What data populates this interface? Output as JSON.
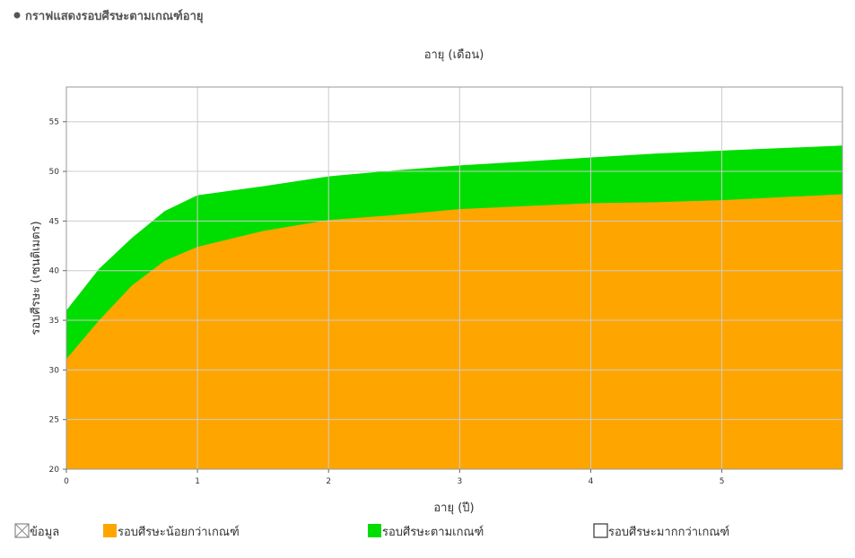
{
  "chart_data": {
    "type": "area",
    "title": "กราฟแสดงรอบศีรษะตามเกณฑ์อายุ",
    "top_axis_label": "อายุ (เดือน)",
    "x_label": "อายุ (ปี)",
    "y_label": "รอบศีรษะ (เซนติเมตร)",
    "x": [
      0,
      0.25,
      0.5,
      0.75,
      1,
      1.5,
      2,
      2.5,
      3,
      3.5,
      4,
      4.5,
      5,
      5.92
    ],
    "series": [
      {
        "name": "รอบศีรษะน้อยกว่าเกณฑ์",
        "color": "#ffa500",
        "values": [
          31.1,
          35,
          38.5,
          41,
          42.4,
          44,
          45.1,
          45.6,
          46.2,
          46.5,
          46.8,
          46.9,
          47.1,
          47.7
        ]
      },
      {
        "name": "รอบศีรษะตามเกณฑ์",
        "color": "#00dd00",
        "values": [
          36,
          40.2,
          43.3,
          46,
          47.6,
          48.5,
          49.5,
          50.1,
          50.6,
          51,
          51.4,
          51.8,
          52.1,
          52.6
        ]
      }
    ],
    "legend_items": [
      {
        "name": "ข้อมูล"
      },
      {
        "name": "รอบศีรษะมากกว่าเกณฑ์"
      }
    ],
    "xlim": [
      0,
      5.92
    ],
    "xticks": [
      0,
      1,
      2,
      3,
      4,
      5
    ],
    "ylim": [
      20,
      58.5
    ],
    "yticks": [
      20,
      25,
      30,
      35,
      40,
      45,
      50,
      55
    ],
    "grid": true
  }
}
